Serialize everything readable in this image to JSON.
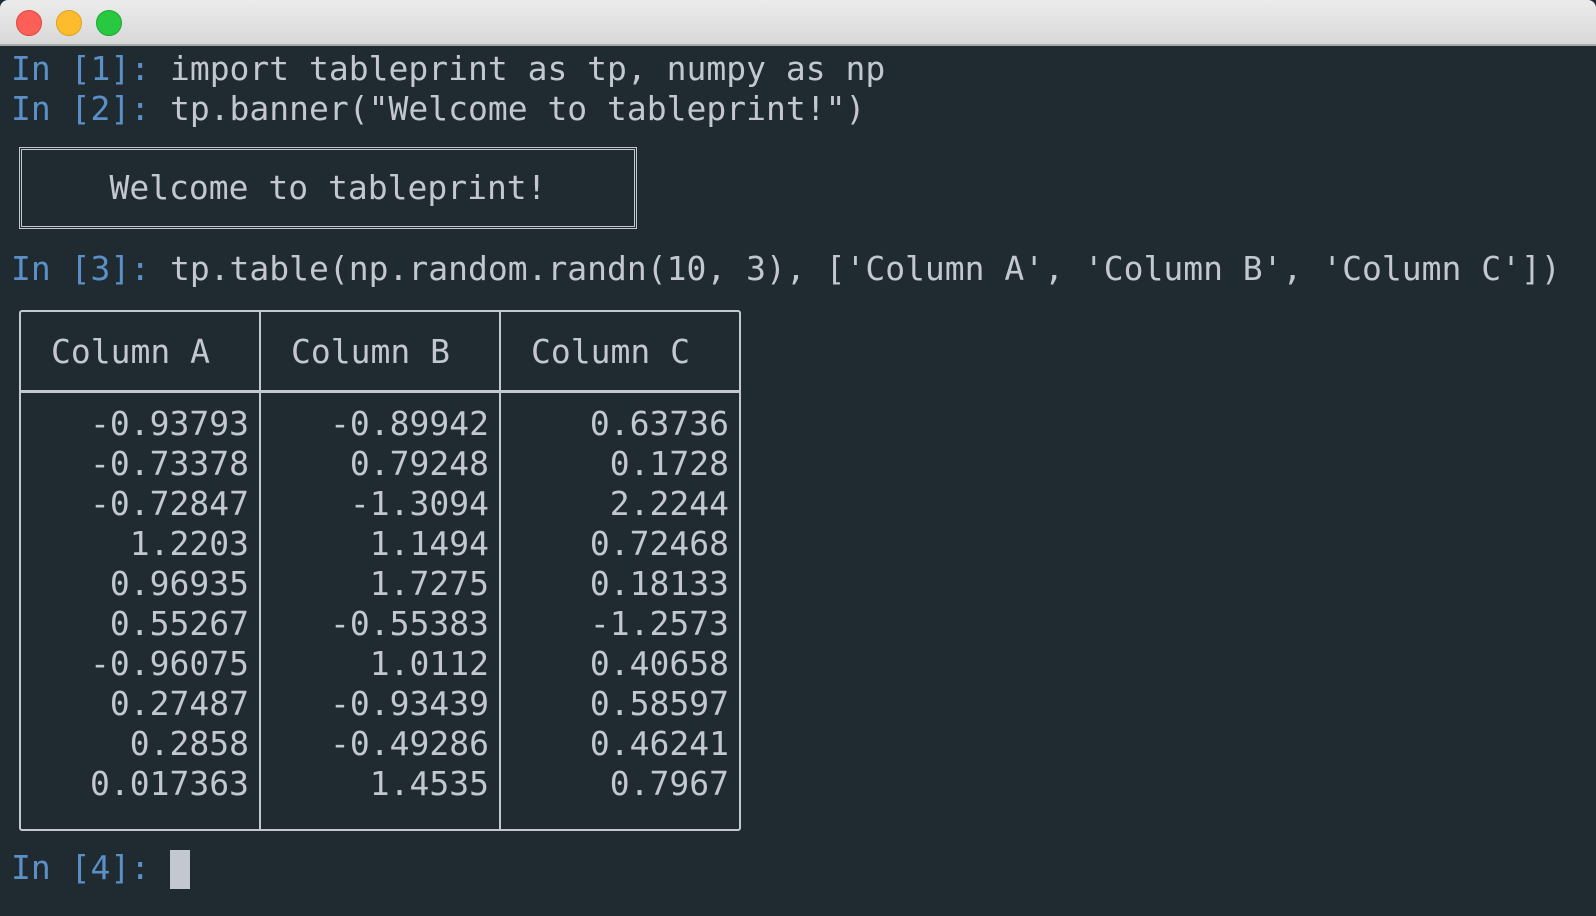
{
  "window": {
    "controls": [
      "close",
      "minimize",
      "maximize"
    ]
  },
  "colors": {
    "background": "#1f2a31",
    "prompt": "#5b90c6",
    "text": "#c3c8d0"
  },
  "lines": [
    {
      "prompt": "In [1]:",
      "code": "import tableprint as tp, numpy as np"
    },
    {
      "prompt": "In [2]:",
      "code": "tp.banner(\"Welcome to tableprint!\")"
    },
    {
      "prompt": "In [3]:",
      "code": "tp.table(np.random.randn(10, 3), ['Column A', 'Column B', 'Column C'])"
    },
    {
      "prompt": "In [4]:",
      "code": ""
    }
  ],
  "banner": {
    "text": "Welcome to tableprint!"
  },
  "table": {
    "headers": [
      "Column A",
      "Column B",
      "Column C"
    ],
    "rows": [
      [
        "-0.93793",
        "-0.89942",
        "0.63736"
      ],
      [
        "-0.73378",
        "0.79248",
        "0.1728"
      ],
      [
        "-0.72847",
        "-1.3094",
        "2.2244"
      ],
      [
        "1.2203",
        "1.1494",
        "0.72468"
      ],
      [
        "0.96935",
        "1.7275",
        "0.18133"
      ],
      [
        "0.55267",
        "-0.55383",
        "-1.2573"
      ],
      [
        "-0.96075",
        "1.0112",
        "0.40658"
      ],
      [
        "0.27487",
        "-0.93439",
        "0.58597"
      ],
      [
        "0.2858",
        "-0.49286",
        "0.46241"
      ],
      [
        "0.017363",
        "1.4535",
        "0.7967"
      ]
    ]
  }
}
